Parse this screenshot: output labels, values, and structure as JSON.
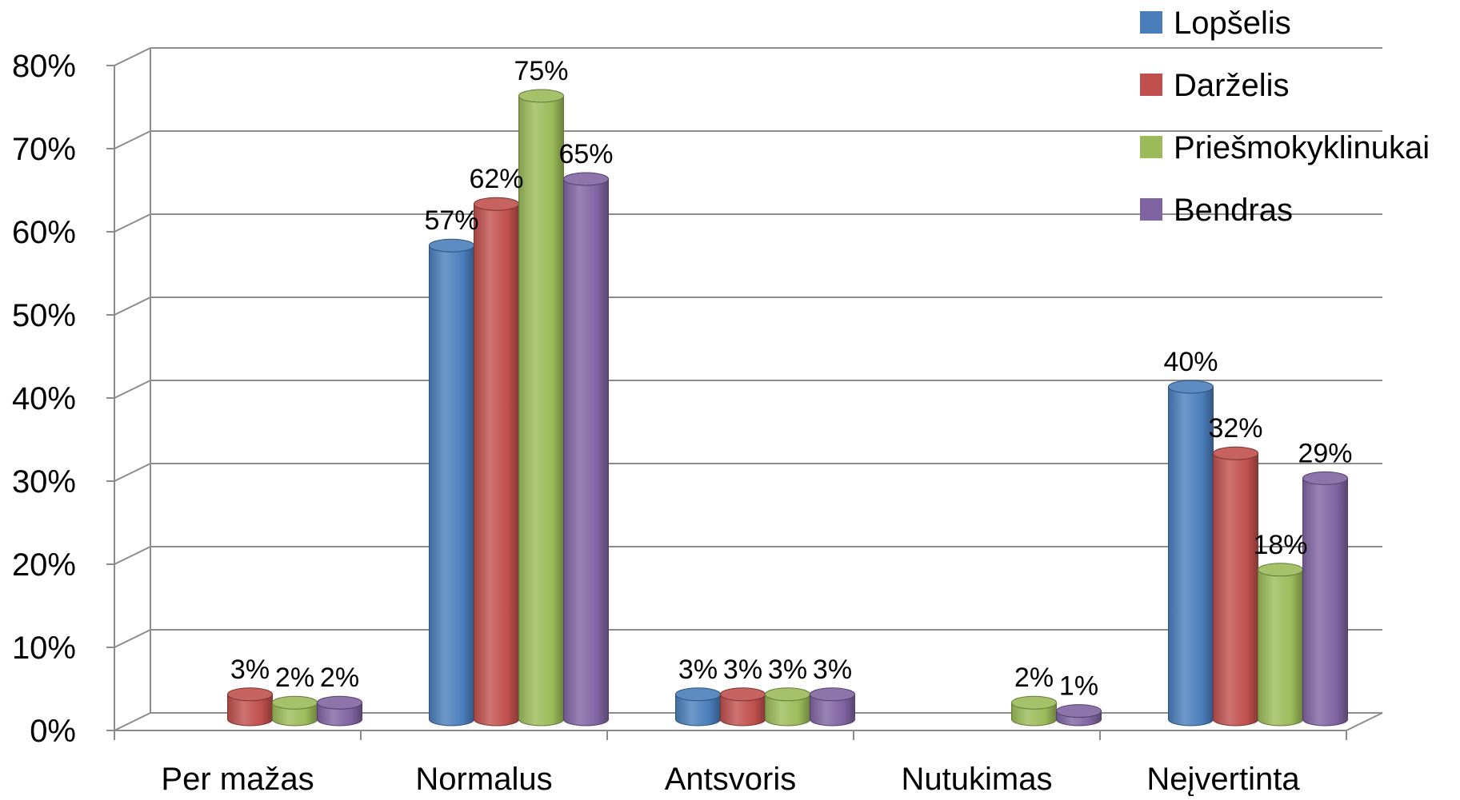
{
  "colors": {
    "Lopšelis": "#4a7ebb",
    "Darželis": "#c0504d",
    "Priešmokyklinukai": "#9bbb59",
    "Bendras": "#8064a2",
    "grid": "#8c8c8c"
  },
  "chart_data": {
    "type": "bar",
    "title": "",
    "xlabel": "",
    "ylabel": "",
    "ylim": [
      0,
      80
    ],
    "yticks": [
      "0%",
      "10%",
      "20%",
      "30%",
      "40%",
      "50%",
      "60%",
      "70%",
      "80%"
    ],
    "categories": [
      "Per mažas",
      "Normalus",
      "Antsvoris",
      "Nutukimas",
      "Neįvertinta"
    ],
    "series": [
      {
        "name": "Lopšelis",
        "values": [
          null,
          57,
          3,
          null,
          40
        ],
        "labels": [
          "",
          "57%",
          "3%",
          "",
          "40%"
        ]
      },
      {
        "name": "Darželis",
        "values": [
          3,
          62,
          3,
          null,
          32
        ],
        "labels": [
          "3%",
          "62%",
          "3%",
          "",
          "32%"
        ]
      },
      {
        "name": "Priešmokyklinukai",
        "values": [
          2,
          75,
          3,
          2,
          18
        ],
        "labels": [
          "2%",
          "75%",
          "3%",
          "2%",
          "18%"
        ]
      },
      {
        "name": "Bendras",
        "values": [
          2,
          65,
          3,
          1,
          29
        ],
        "labels": [
          "2%",
          "65%",
          "3%",
          "1%",
          "29%"
        ]
      }
    ],
    "grid": true,
    "legend_position": "top-right",
    "style": "3d-cylinder"
  }
}
